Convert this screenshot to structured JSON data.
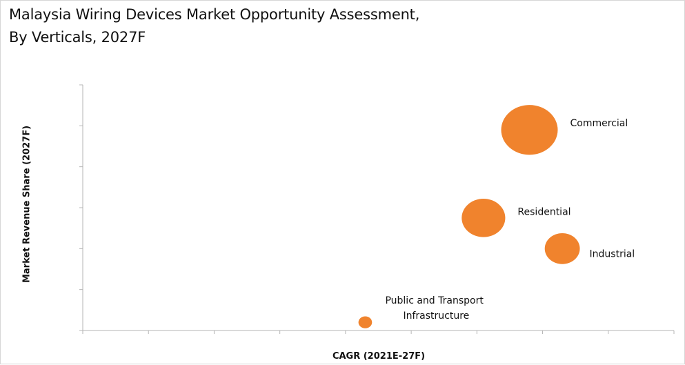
{
  "chart_data": {
    "type": "bubble",
    "title_lines": [
      "Malaysia Wiring Devices Market Opportunity Assessment,",
      "By Verticals, 2027F"
    ],
    "xlabel": "CAGR (2021E-27F)",
    "ylabel": "Market Revenue Share (2027F)",
    "xlim": [
      0,
      9
    ],
    "ylim": [
      0,
      6
    ],
    "grid": false,
    "tick_labels_shown": false,
    "bubble_color": "#F0832D",
    "series": [
      {
        "name": "Commercial",
        "label_lines": [
          "Commercial"
        ],
        "x": 6.8,
        "y": 4.9,
        "size": 1.0,
        "label_side": "right"
      },
      {
        "name": "Residential",
        "label_lines": [
          "Residential"
        ],
        "x": 6.1,
        "y": 2.75,
        "size": 0.77,
        "label_side": "right"
      },
      {
        "name": "Industrial",
        "label_lines": [
          "Industrial"
        ],
        "x": 7.3,
        "y": 2.0,
        "size": 0.62,
        "label_side": "below-right"
      },
      {
        "name": "Public and Transport Infrastructure",
        "label_lines": [
          "Public and Transport",
          "Infrastructure"
        ],
        "x": 4.3,
        "y": 0.2,
        "size": 0.24,
        "label_side": "above-right"
      }
    ]
  }
}
